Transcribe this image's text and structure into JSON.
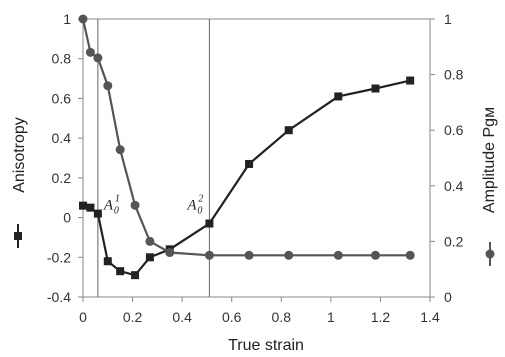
{
  "chart_data": {
    "type": "line",
    "xlabel": "True strain",
    "ylabel_left": "Anisotropy",
    "ylabel_right": "Amplitude Pgм",
    "xlim": [
      0,
      1.4
    ],
    "ylim_left": [
      -0.4,
      1
    ],
    "ylim_right": [
      0,
      1
    ],
    "x_ticks": [
      "0",
      "0.2",
      "0.4",
      "0.6",
      "0.8",
      "1",
      "1.2",
      "1.4"
    ],
    "y_left_ticks": [
      "-0.4",
      "-0.2",
      "0",
      "0.2",
      "0.4",
      "0.6",
      "0.8",
      "1"
    ],
    "y_right_ticks": [
      "0",
      "0.2",
      "0.4",
      "0.6",
      "0.8",
      "1"
    ],
    "grid": false,
    "series": [
      {
        "axis": "left",
        "marker": "square",
        "color": "#222222",
        "x": [
          0,
          0.03,
          0.06,
          0.1,
          0.15,
          0.21,
          0.27,
          0.35,
          0.51,
          0.67,
          0.83,
          1.03,
          1.18,
          1.32
        ],
        "y": [
          0.06,
          0.05,
          0.02,
          -0.22,
          -0.27,
          -0.29,
          -0.2,
          -0.16,
          -0.03,
          0.27,
          0.44,
          0.61,
          0.65,
          0.69
        ]
      },
      {
        "axis": "right",
        "marker": "circle",
        "color": "#555555",
        "x": [
          0,
          0.03,
          0.06,
          0.1,
          0.15,
          0.21,
          0.27,
          0.35,
          0.51,
          0.67,
          0.83,
          1.03,
          1.18,
          1.32
        ],
        "y": [
          1.0,
          0.88,
          0.86,
          0.76,
          0.53,
          0.33,
          0.2,
          0.16,
          0.15,
          0.15,
          0.15,
          0.15,
          0.15,
          0.15
        ]
      }
    ],
    "vlines": [
      0.06,
      0.51
    ],
    "annotations": [
      {
        "base": "A",
        "sub": "0",
        "sup": "1",
        "x": 0.06,
        "y": 0.0
      },
      {
        "base": "A",
        "sub": "0",
        "sup": "2",
        "x": 0.51,
        "y": 0.0
      }
    ]
  }
}
